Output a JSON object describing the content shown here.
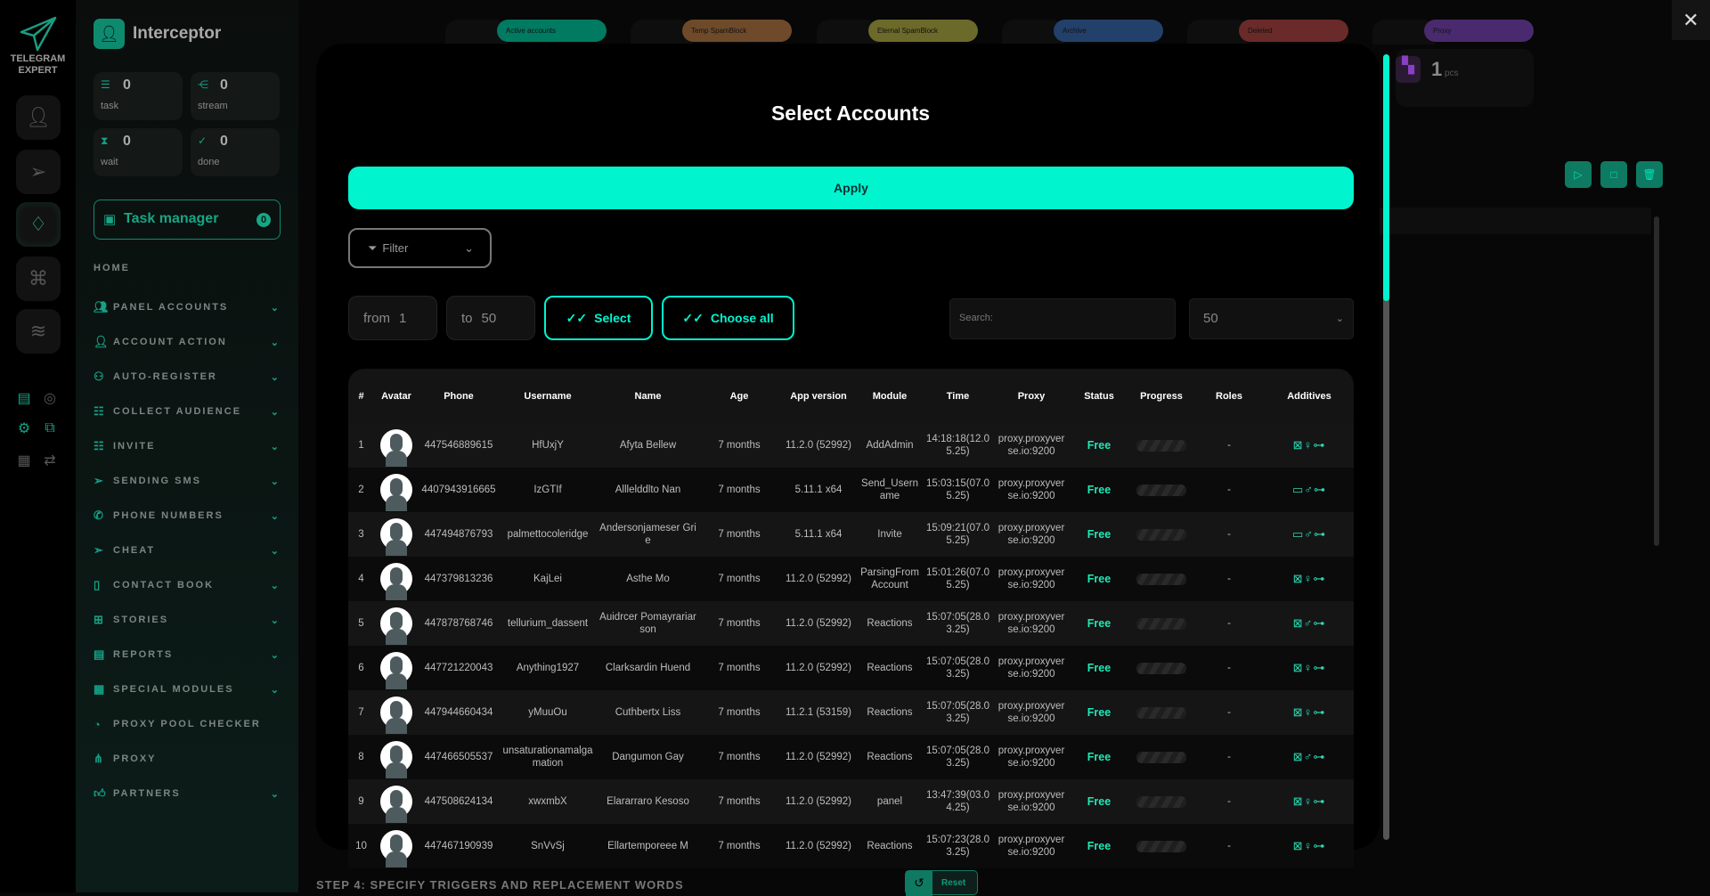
{
  "rail": {
    "logo_text": "TELEGRAM EXPERT",
    "buttons": [
      "user-icon",
      "send-icon",
      "diamond-icon",
      "command-icon",
      "database-icon"
    ],
    "active": "diamond-icon"
  },
  "sidebar": {
    "title": "Interceptor",
    "stats": [
      {
        "value": "0",
        "label": "task"
      },
      {
        "value": "0",
        "label": "stream"
      },
      {
        "value": "0",
        "label": "wait"
      },
      {
        "value": "0",
        "label": "done"
      }
    ],
    "task_manager": {
      "label": "Task manager",
      "count": "0"
    },
    "home": "HOME",
    "items": [
      {
        "label": "PANEL ACCOUNTS",
        "chev": true
      },
      {
        "label": "ACCOUNT ACTION",
        "chev": true
      },
      {
        "label": "AUTO-REGISTER",
        "chev": true
      },
      {
        "label": "COLLECT AUDIENCE",
        "chev": true
      },
      {
        "label": "INVITE",
        "chev": true
      },
      {
        "label": "SENDING SMS",
        "chev": true
      },
      {
        "label": "PHONE NUMBERS",
        "chev": true
      },
      {
        "label": "CHEAT",
        "chev": true
      },
      {
        "label": "CONTACT BOOK",
        "chev": true
      },
      {
        "label": "STORIES",
        "chev": true
      },
      {
        "label": "REPORTS",
        "chev": true
      },
      {
        "label": "SPECIAL MODULES",
        "chev": true
      },
      {
        "label": "PROXY POOL CHECKER",
        "chev": false
      },
      {
        "label": "PROXY",
        "chev": false
      },
      {
        "label": "PARTNERS",
        "chev": true
      }
    ]
  },
  "tabs": [
    {
      "label": "Active accounts",
      "color": "#007a60"
    },
    {
      "label": "Temp SpamBlock",
      "color": "#6e4a2a"
    },
    {
      "label": "Eternal SpamBlock",
      "color": "#6b6a2a"
    },
    {
      "label": "Archive",
      "color": "#22406a"
    },
    {
      "label": "Deleted",
      "color": "#6a2a2a"
    },
    {
      "label": "Proxy",
      "color": "#4a2a6e"
    }
  ],
  "pcs": {
    "value": "1",
    "unit": "pcs"
  },
  "background": {
    "step_label": "STEP 4: SPECIFY TRIGGERS AND REPLACEMENT WORDS",
    "reset_label": "Reset"
  },
  "modal": {
    "title": "Select Accounts",
    "apply_label": "Apply",
    "filter_label": "Filter",
    "from_label": "from",
    "from_value": "1",
    "to_label": "to",
    "to_value": "50",
    "select_label": "Select",
    "choose_all_label": "Choose all",
    "search_placeholder": "Search:",
    "page_size": "50",
    "columns": [
      "#",
      "Avatar",
      "Phone",
      "Username",
      "Name",
      "Age",
      "App version",
      "Module",
      "Time",
      "Proxy",
      "Status",
      "Progress",
      "Roles",
      "Additives"
    ],
    "rows": [
      {
        "n": "1",
        "phone": "447546889615",
        "username": "HfUxjY",
        "name": "Afyta Bellew",
        "age": "7 months",
        "app": "11.2.0 (52992)",
        "module": "AddAdmin",
        "time": "14:18:18(12.05.25)",
        "proxy": "proxy.proxyverse.io:9200",
        "status": "Free",
        "roles": "-",
        "additives": "⊠♀⊶"
      },
      {
        "n": "2",
        "phone": "4407943916665",
        "username": "IzGTIf",
        "name": "Alllelddlto Nan",
        "age": "7 months",
        "app": "5.11.1 x64",
        "module": "Send_Username",
        "time": "15:03:15(07.05.25)",
        "proxy": "proxy.proxyverse.io:9200",
        "status": "Free",
        "roles": "-",
        "additives": "▭♂⊶"
      },
      {
        "n": "3",
        "phone": "447494876793",
        "username": "palmettocoleridge",
        "name": "Andersonjameser Grie",
        "age": "7 months",
        "app": "5.11.1 x64",
        "module": "Invite",
        "time": "15:09:21(07.05.25)",
        "proxy": "proxy.proxyverse.io:9200",
        "status": "Free",
        "roles": "-",
        "additives": "▭♂⊶"
      },
      {
        "n": "4",
        "phone": "447379813236",
        "username": "KajLei",
        "name": "Asthe Mo",
        "age": "7 months",
        "app": "11.2.0 (52992)",
        "module": "ParsingFromAccount",
        "time": "15:01:26(07.05.25)",
        "proxy": "proxy.proxyverse.io:9200",
        "status": "Free",
        "roles": "-",
        "additives": "⊠♀⊶"
      },
      {
        "n": "5",
        "phone": "447878768746",
        "username": "tellurium_dassent",
        "name": "Auidrcer Pomayrariarson",
        "age": "7 months",
        "app": "11.2.0 (52992)",
        "module": "Reactions",
        "time": "15:07:05(28.03.25)",
        "proxy": "proxy.proxyverse.io:9200",
        "status": "Free",
        "roles": "-",
        "additives": "⊠♂⊶"
      },
      {
        "n": "6",
        "phone": "447721220043",
        "username": "Anything1927",
        "name": "Clarksardin Huend",
        "age": "7 months",
        "app": "11.2.0 (52992)",
        "module": "Reactions",
        "time": "15:07:05(28.03.25)",
        "proxy": "proxy.proxyverse.io:9200",
        "status": "Free",
        "roles": "-",
        "additives": "⊠♀⊶"
      },
      {
        "n": "7",
        "phone": "447944660434",
        "username": "yMuuOu",
        "name": "Cuthbertx Liss",
        "age": "7 months",
        "app": "11.2.1 (53159)",
        "module": "Reactions",
        "time": "15:07:05(28.03.25)",
        "proxy": "proxy.proxyverse.io:9200",
        "status": "Free",
        "roles": "-",
        "additives": "⊠♀⊶"
      },
      {
        "n": "8",
        "phone": "447466505537",
        "username": "unsaturationamalgamation",
        "name": "Dangumon Gay",
        "age": "7 months",
        "app": "11.2.0 (52992)",
        "module": "Reactions",
        "time": "15:07:05(28.03.25)",
        "proxy": "proxy.proxyverse.io:9200",
        "status": "Free",
        "roles": "-",
        "additives": "⊠♂⊶"
      },
      {
        "n": "9",
        "phone": "447508624134",
        "username": "xwxmbX",
        "name": "Elararraro Kesoso",
        "age": "7 months",
        "app": "11.2.0 (52992)",
        "module": "panel",
        "time": "13:47:39(03.04.25)",
        "proxy": "proxy.proxyverse.io:9200",
        "status": "Free",
        "roles": "-",
        "additives": "⊠♀⊶"
      },
      {
        "n": "10",
        "phone": "447467190939",
        "username": "SnVvSj",
        "name": "Ellartemporeee M",
        "age": "7 months",
        "app": "11.2.0 (52992)",
        "module": "Reactions",
        "time": "15:07:23(28.03.25)",
        "proxy": "proxy.proxyverse.io:9200",
        "status": "Free",
        "roles": "-",
        "additives": "⊠♀⊶"
      }
    ]
  },
  "colors": {
    "accent": "#00f5cf",
    "brand": "#16a085",
    "status_free": "#1ee9b6"
  }
}
